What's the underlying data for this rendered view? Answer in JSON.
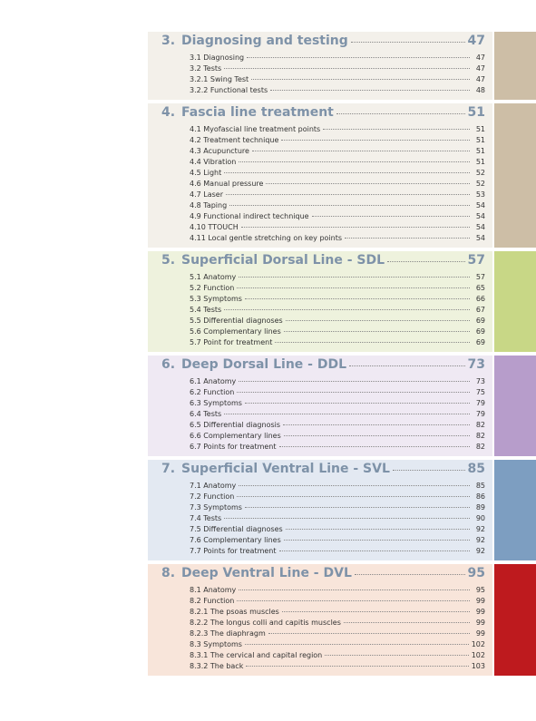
{
  "sections": [
    {
      "number": "3.",
      "title": "Diagnosing and testing",
      "page": "47",
      "entries": [
        {
          "label": "3.1 Diagnosing",
          "page": "47"
        },
        {
          "label": "3.2 Tests",
          "page": "47"
        },
        {
          "label": "3.2.1 Swing Test",
          "page": "47"
        },
        {
          "label": "3.2.2 Functional tests",
          "page": "48"
        }
      ]
    },
    {
      "number": "4.",
      "title": "Fascia line treatment",
      "page": "51",
      "entries": [
        {
          "label": "4.1 Myofascial line treatment points",
          "page": "51"
        },
        {
          "label": "4.2 Treatment technique",
          "page": "51"
        },
        {
          "label": "4.3 Acupuncture",
          "page": "51"
        },
        {
          "label": "4.4 Vibration",
          "page": "51"
        },
        {
          "label": "4.5 Light",
          "page": "52"
        },
        {
          "label": "4.6 Manual pressure",
          "page": "52"
        },
        {
          "label": "4.7 Laser",
          "page": "53"
        },
        {
          "label": "4.8 Taping",
          "page": "54"
        },
        {
          "label": "4.9 Functional indirect technique",
          "page": "54"
        },
        {
          "label": "4.10 TTOUCH",
          "page": "54"
        },
        {
          "label": "4.11 Local gentle stretching on key points",
          "page": "54"
        }
      ]
    },
    {
      "number": "5.",
      "title": "Superficial Dorsal Line - SDL",
      "page": "57",
      "entries": [
        {
          "label": "5.1 Anatomy",
          "page": "57"
        },
        {
          "label": "5.2 Function",
          "page": "65"
        },
        {
          "label": "5.3 Symptoms",
          "page": "66"
        },
        {
          "label": "5.4 Tests",
          "page": "67"
        },
        {
          "label": "5.5 Differential diagnoses",
          "page": "69"
        },
        {
          "label": "5.6 Complementary lines",
          "page": "69"
        },
        {
          "label": "5.7 Point for treatment",
          "page": "69"
        }
      ]
    },
    {
      "number": "6.",
      "title": "Deep Dorsal Line - DDL",
      "page": "73",
      "entries": [
        {
          "label": "6.1 Anatomy",
          "page": "73"
        },
        {
          "label": "6.2 Function",
          "page": "75"
        },
        {
          "label": "6.3 Symptoms",
          "page": "79"
        },
        {
          "label": "6.4 Tests",
          "page": "79"
        },
        {
          "label": "6.5 Differential diagnosis",
          "page": "82"
        },
        {
          "label": "6.6 Complementary lines",
          "page": "82"
        },
        {
          "label": "6.7 Points for treatment",
          "page": "82"
        }
      ]
    },
    {
      "number": "7.",
      "title": "Superficial Ventral Line - SVL",
      "page": "85",
      "entries": [
        {
          "label": "7.1 Anatomy",
          "page": "85"
        },
        {
          "label": "7.2 Function",
          "page": "86"
        },
        {
          "label": "7.3 Symptoms",
          "page": "89"
        },
        {
          "label": "7.4 Tests",
          "page": "90"
        },
        {
          "label": "7.5 Differential diagnoses",
          "page": "92"
        },
        {
          "label": "7.6 Complementary lines",
          "page": "92"
        },
        {
          "label": "7.7 Points for treatment",
          "page": "92"
        }
      ]
    },
    {
      "number": "8.",
      "title": "Deep Ventral Line - DVL",
      "page": "95",
      "entries": [
        {
          "label": "8.1 Anatomy",
          "page": "95"
        },
        {
          "label": "8.2 Function",
          "page": "99"
        },
        {
          "label": "8.2.1 The psoas muscles",
          "page": "99"
        },
        {
          "label": "8.2.2 The longus colli and capitis muscles",
          "page": "99"
        },
        {
          "label": "8.2.3 The diaphragm",
          "page": "99"
        },
        {
          "label": "8.3 Symptoms",
          "page": "102"
        },
        {
          "label": "8.3.1 The cervical and capital region",
          "page": "102"
        },
        {
          "label": "8.3.2 The back",
          "page": "103"
        }
      ]
    }
  ]
}
